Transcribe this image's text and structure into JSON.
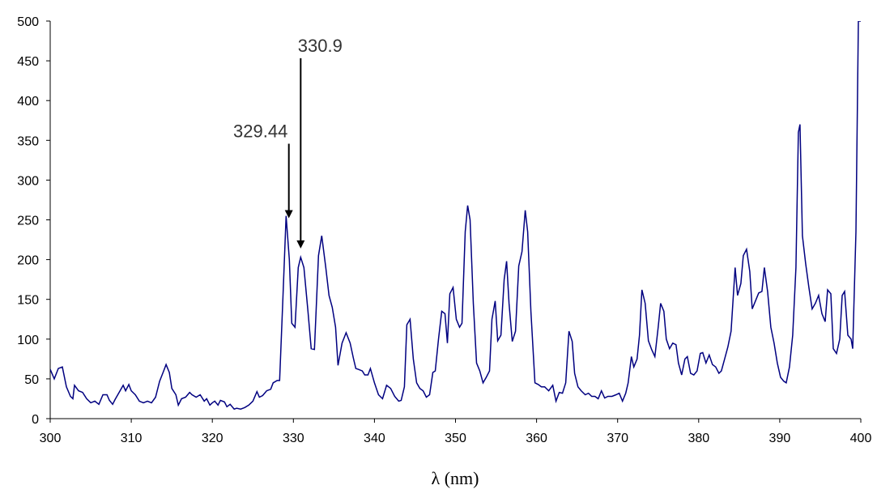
{
  "chart_data": {
    "type": "line",
    "x_label": "λ (nm)",
    "xlim": [
      300,
      400
    ],
    "xticks": [
      300,
      310,
      320,
      330,
      340,
      350,
      360,
      370,
      380,
      390,
      400
    ],
    "ylim": [
      0,
      500
    ],
    "yticks": [
      0,
      50,
      100,
      150,
      200,
      250,
      300,
      350,
      400,
      450,
      500
    ],
    "x": [
      300,
      300.5,
      301,
      301.5,
      302,
      302.5,
      302.8,
      303,
      303.5,
      304,
      304.5,
      305,
      305.5,
      306,
      306.5,
      307,
      307.3,
      307.7,
      308,
      308.5,
      309,
      309.3,
      309.7,
      310,
      310.5,
      311,
      311.5,
      312,
      312.5,
      313,
      313.5,
      314,
      314.3,
      314.7,
      315,
      315.5,
      315.8,
      316.2,
      316.7,
      317.2,
      317.5,
      318,
      318.5,
      319,
      319.3,
      319.7,
      320,
      320.3,
      320.7,
      321,
      321.5,
      321.8,
      322.2,
      322.7,
      323,
      323.5,
      324,
      324.5,
      325,
      325.5,
      325.8,
      326.2,
      326.7,
      327.2,
      327.5,
      328,
      328.3,
      328.7,
      329.1,
      329.5,
      329.8,
      330.2,
      330.6,
      330.9,
      331.3,
      331.8,
      332.2,
      332.6,
      333.1,
      333.5,
      334,
      334.4,
      334.8,
      335.2,
      335.5,
      336,
      336.5,
      337,
      337.4,
      337.7,
      338,
      338.5,
      338.8,
      339.2,
      339.5,
      340,
      340.5,
      341,
      341.5,
      342,
      342.5,
      343,
      343.3,
      343.7,
      344,
      344.4,
      344.8,
      345.2,
      345.6,
      346,
      346.4,
      346.8,
      347.2,
      347.5,
      347.9,
      348.3,
      348.7,
      349,
      349.3,
      349.7,
      350.1,
      350.5,
      350.8,
      351.2,
      351.5,
      351.8,
      352.2,
      352.6,
      353,
      353.4,
      353.8,
      354.2,
      354.5,
      354.9,
      355.2,
      355.6,
      356,
      356.3,
      356.6,
      357,
      357.4,
      357.8,
      358.2,
      358.6,
      358.9,
      359.3,
      359.8,
      360.2,
      360.6,
      361,
      361.5,
      362,
      362.4,
      362.8,
      363.2,
      363.6,
      364,
      364.4,
      364.7,
      365.1,
      365.5,
      366,
      366.4,
      366.8,
      367.2,
      367.6,
      368,
      368.4,
      368.8,
      369.3,
      369.8,
      370.2,
      370.6,
      371,
      371.3,
      371.7,
      372,
      372.4,
      372.7,
      373,
      373.4,
      373.8,
      374.2,
      374.6,
      375,
      375.3,
      375.7,
      376,
      376.4,
      376.8,
      377.2,
      377.5,
      377.9,
      378.3,
      378.6,
      379,
      379.4,
      379.8,
      380.2,
      380.5,
      380.9,
      381.3,
      381.7,
      382.1,
      382.5,
      382.8,
      383.2,
      383.6,
      384,
      384.5,
      384.8,
      385.2,
      385.5,
      385.9,
      386.3,
      386.6,
      387,
      387.4,
      387.8,
      388.1,
      388.5,
      388.9,
      389.3,
      389.7,
      390.1,
      390.5,
      390.8,
      391.2,
      391.6,
      392,
      392.3,
      392.5,
      392.8,
      393.2,
      393.6,
      394,
      394.4,
      394.8,
      395.2,
      395.6,
      395.9,
      396.3,
      396.6,
      397,
      397.4,
      397.7,
      398,
      398.4,
      398.8,
      399,
      399.4,
      399.7,
      400
    ],
    "series": [
      {
        "color": "#000080",
        "values": [
          62,
          50,
          63,
          65,
          40,
          28,
          25,
          42,
          35,
          33,
          25,
          20,
          22,
          18,
          30,
          30,
          23,
          18,
          24,
          33,
          42,
          35,
          43,
          35,
          30,
          22,
          20,
          22,
          20,
          27,
          47,
          60,
          68,
          58,
          38,
          30,
          17,
          25,
          27,
          33,
          30,
          27,
          30,
          22,
          25,
          17,
          20,
          22,
          17,
          23,
          21,
          15,
          18,
          12,
          13,
          12,
          14,
          17,
          22,
          34,
          27,
          29,
          35,
          37,
          45,
          48,
          48,
          150,
          255,
          200,
          120,
          115,
          190,
          203,
          190,
          135,
          88,
          87,
          205,
          230,
          190,
          155,
          140,
          115,
          67,
          95,
          108,
          95,
          76,
          63,
          62,
          60,
          55,
          55,
          63,
          45,
          30,
          25,
          42,
          38,
          28,
          22,
          23,
          40,
          118,
          125,
          75,
          45,
          38,
          35,
          27,
          30,
          58,
          60,
          100,
          135,
          132,
          95,
          157,
          165,
          125,
          115,
          120,
          235,
          268,
          250,
          145,
          70,
          60,
          45,
          52,
          60,
          125,
          148,
          98,
          105,
          175,
          198,
          145,
          97,
          110,
          192,
          210,
          262,
          235,
          135,
          45,
          43,
          40,
          40,
          35,
          42,
          22,
          33,
          32,
          45,
          110,
          97,
          57,
          40,
          35,
          30,
          32,
          28,
          28,
          25,
          35,
          26,
          28,
          28,
          30,
          32,
          22,
          32,
          45,
          78,
          65,
          75,
          105,
          162,
          145,
          98,
          87,
          78,
          115,
          145,
          135,
          100,
          88,
          95,
          93,
          70,
          55,
          75,
          78,
          57,
          55,
          60,
          82,
          83,
          70,
          80,
          68,
          65,
          57,
          60,
          75,
          90,
          110,
          190,
          155,
          170,
          205,
          213,
          185,
          138,
          148,
          158,
          160,
          190,
          160,
          115,
          95,
          70,
          52,
          47,
          45,
          65,
          105,
          190,
          360,
          370,
          230,
          195,
          165,
          138,
          145,
          155,
          132,
          122,
          162,
          157,
          88,
          82,
          100,
          155,
          160,
          105,
          100,
          88,
          235,
          500,
          500
        ]
      }
    ],
    "annotations": [
      {
        "text": "329.44",
        "x": 329.44,
        "y": 252
      },
      {
        "text": "330.9",
        "x": 330.9,
        "y": 214
      }
    ]
  }
}
